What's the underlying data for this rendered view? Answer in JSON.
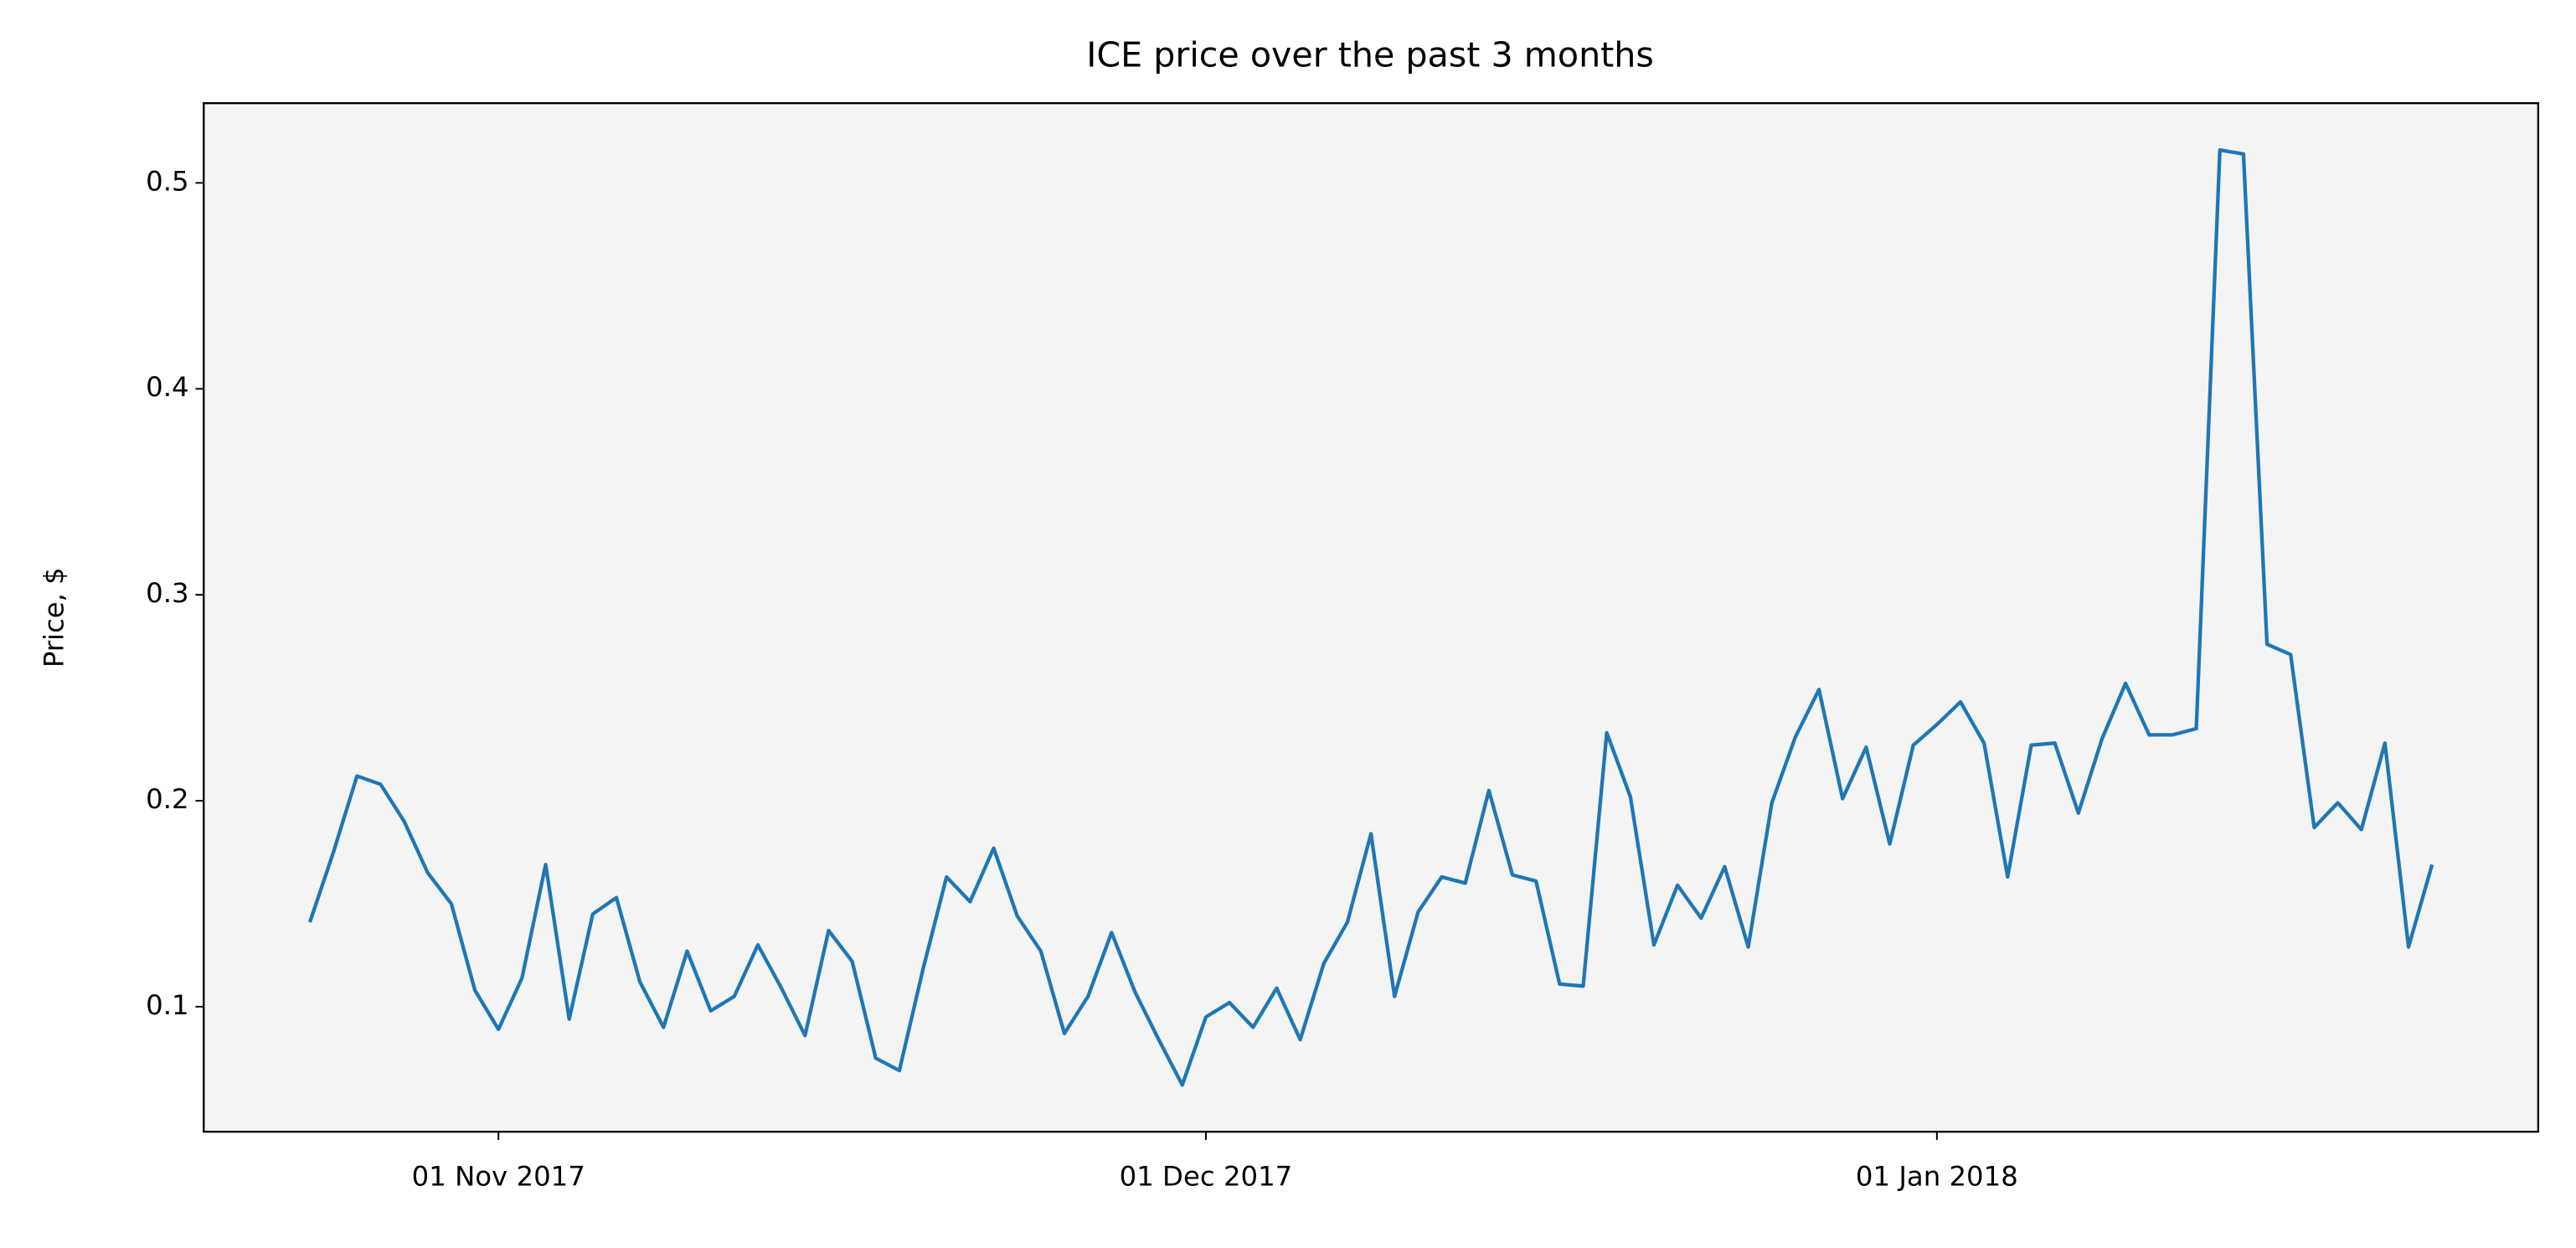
{
  "chart_data": {
    "type": "line",
    "title": "ICE price over the past 3 months",
    "ylabel": "Price, $",
    "x": [
      "2017-10-24",
      "2017-10-25",
      "2017-10-26",
      "2017-10-27",
      "2017-10-28",
      "2017-10-29",
      "2017-10-30",
      "2017-10-31",
      "2017-11-01",
      "2017-11-02",
      "2017-11-03",
      "2017-11-04",
      "2017-11-05",
      "2017-11-06",
      "2017-11-07",
      "2017-11-08",
      "2017-11-09",
      "2017-11-10",
      "2017-11-11",
      "2017-11-12",
      "2017-11-13",
      "2017-11-14",
      "2017-11-15",
      "2017-11-16",
      "2017-11-17",
      "2017-11-18",
      "2017-11-19",
      "2017-11-20",
      "2017-11-21",
      "2017-11-22",
      "2017-11-23",
      "2017-11-24",
      "2017-11-25",
      "2017-11-26",
      "2017-11-27",
      "2017-11-28",
      "2017-11-29",
      "2017-11-30",
      "2017-12-01",
      "2017-12-02",
      "2017-12-03",
      "2017-12-04",
      "2017-12-05",
      "2017-12-06",
      "2017-12-07",
      "2017-12-08",
      "2017-12-09",
      "2017-12-10",
      "2017-12-11",
      "2017-12-12",
      "2017-12-13",
      "2017-12-14",
      "2017-12-15",
      "2017-12-16",
      "2017-12-17",
      "2017-12-18",
      "2017-12-19",
      "2017-12-20",
      "2017-12-21",
      "2017-12-22",
      "2017-12-23",
      "2017-12-24",
      "2017-12-25",
      "2017-12-26",
      "2017-12-27",
      "2017-12-28",
      "2017-12-29",
      "2017-12-30",
      "2017-12-31",
      "2018-01-01",
      "2018-01-02",
      "2018-01-03",
      "2018-01-04",
      "2018-01-05",
      "2018-01-06",
      "2018-01-07",
      "2018-01-08",
      "2018-01-09",
      "2018-01-10",
      "2018-01-11",
      "2018-01-12",
      "2018-01-13",
      "2018-01-14",
      "2018-01-15",
      "2018-01-16",
      "2018-01-17",
      "2018-01-18",
      "2018-01-19",
      "2018-01-20",
      "2018-01-21",
      "2018-01-22"
    ],
    "series": [
      {
        "name": "ICE",
        "color": "#1f77b4",
        "values": [
          0.141,
          0.175,
          0.212,
          0.208,
          0.19,
          0.165,
          0.15,
          0.108,
          0.089,
          0.114,
          0.169,
          0.094,
          0.145,
          0.153,
          0.112,
          0.09,
          0.127,
          0.098,
          0.105,
          0.13,
          0.109,
          0.086,
          0.137,
          0.122,
          0.075,
          0.069,
          0.118,
          0.163,
          0.151,
          0.177,
          0.144,
          0.127,
          0.087,
          0.105,
          0.136,
          0.107,
          0.084,
          0.062,
          0.095,
          0.102,
          0.09,
          0.109,
          0.084,
          0.121,
          0.141,
          0.184,
          0.105,
          0.146,
          0.163,
          0.16,
          0.205,
          0.164,
          0.161,
          0.111,
          0.11,
          0.233,
          0.202,
          0.13,
          0.159,
          0.143,
          0.168,
          0.129,
          0.199,
          0.231,
          0.254,
          0.201,
          0.226,
          0.179,
          0.227,
          0.237,
          0.248,
          0.228,
          0.163,
          0.227,
          0.228,
          0.194,
          0.23,
          0.257,
          0.232,
          0.232,
          0.235,
          0.516,
          0.514,
          0.276,
          0.271,
          0.187,
          0.199,
          0.186,
          0.228,
          0.129,
          0.169
        ]
      }
    ],
    "xlim": [
      "2017-10-19T12:00:00Z",
      "2018-01-26T12:00:00Z"
    ],
    "xticks": [
      {
        "value": "2017-11-01",
        "label": "01 Nov 2017"
      },
      {
        "value": "2017-12-01",
        "label": "01 Dec 2017"
      },
      {
        "value": "2018-01-01",
        "label": "01 Jan 2018"
      }
    ],
    "ylim": [
      0.0393,
      0.5387
    ],
    "yticks": [
      0.1,
      0.2,
      0.3,
      0.4,
      0.5
    ],
    "background": "#f4f4f4",
    "grid": false
  }
}
